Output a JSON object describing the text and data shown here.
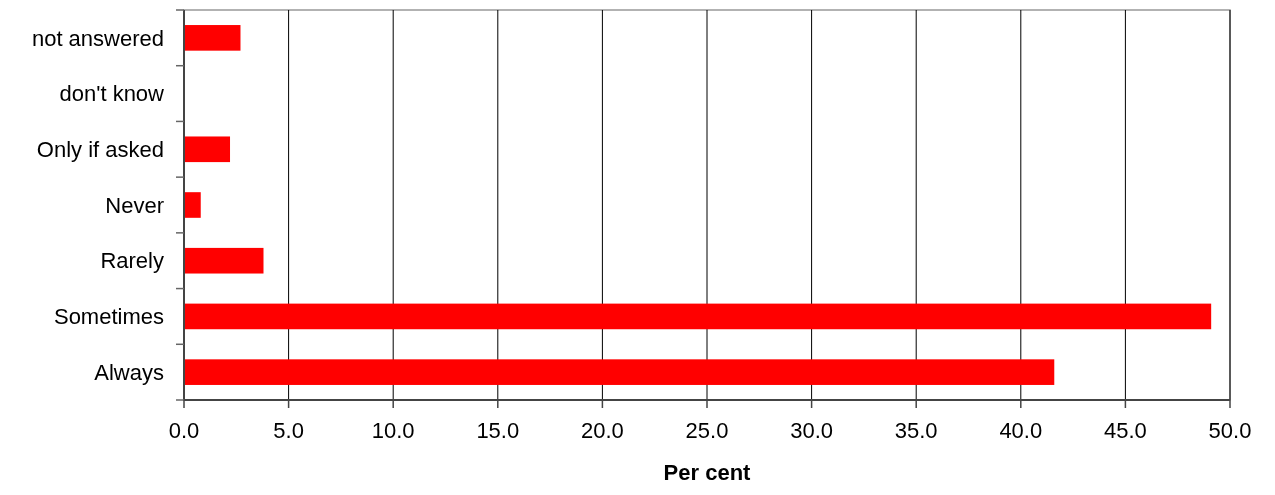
{
  "chart_data": {
    "type": "bar",
    "orientation": "horizontal",
    "categories": [
      "not answered",
      "don't know",
      "Only if asked",
      "Never",
      "Rarely",
      "Sometimes",
      "Always"
    ],
    "values": [
      2.7,
      0,
      2.2,
      0.8,
      3.8,
      49.1,
      41.6
    ],
    "color": "#ff0000",
    "xlim": [
      0,
      50
    ],
    "xticks": [
      {
        "value": 0,
        "label": "0.0"
      },
      {
        "value": 5,
        "label": "5.0"
      },
      {
        "value": 10,
        "label": "10.0"
      },
      {
        "value": 15,
        "label": "15.0"
      },
      {
        "value": 20,
        "label": "20.0"
      },
      {
        "value": 25,
        "label": "25.0"
      },
      {
        "value": 30,
        "label": "30.0"
      },
      {
        "value": 35,
        "label": "35.0"
      },
      {
        "value": 40,
        "label": "40.0"
      },
      {
        "value": 45,
        "label": "45.0"
      },
      {
        "value": 50,
        "label": "50.0"
      }
    ],
    "xlabel": "Per cent",
    "grid": "x"
  }
}
